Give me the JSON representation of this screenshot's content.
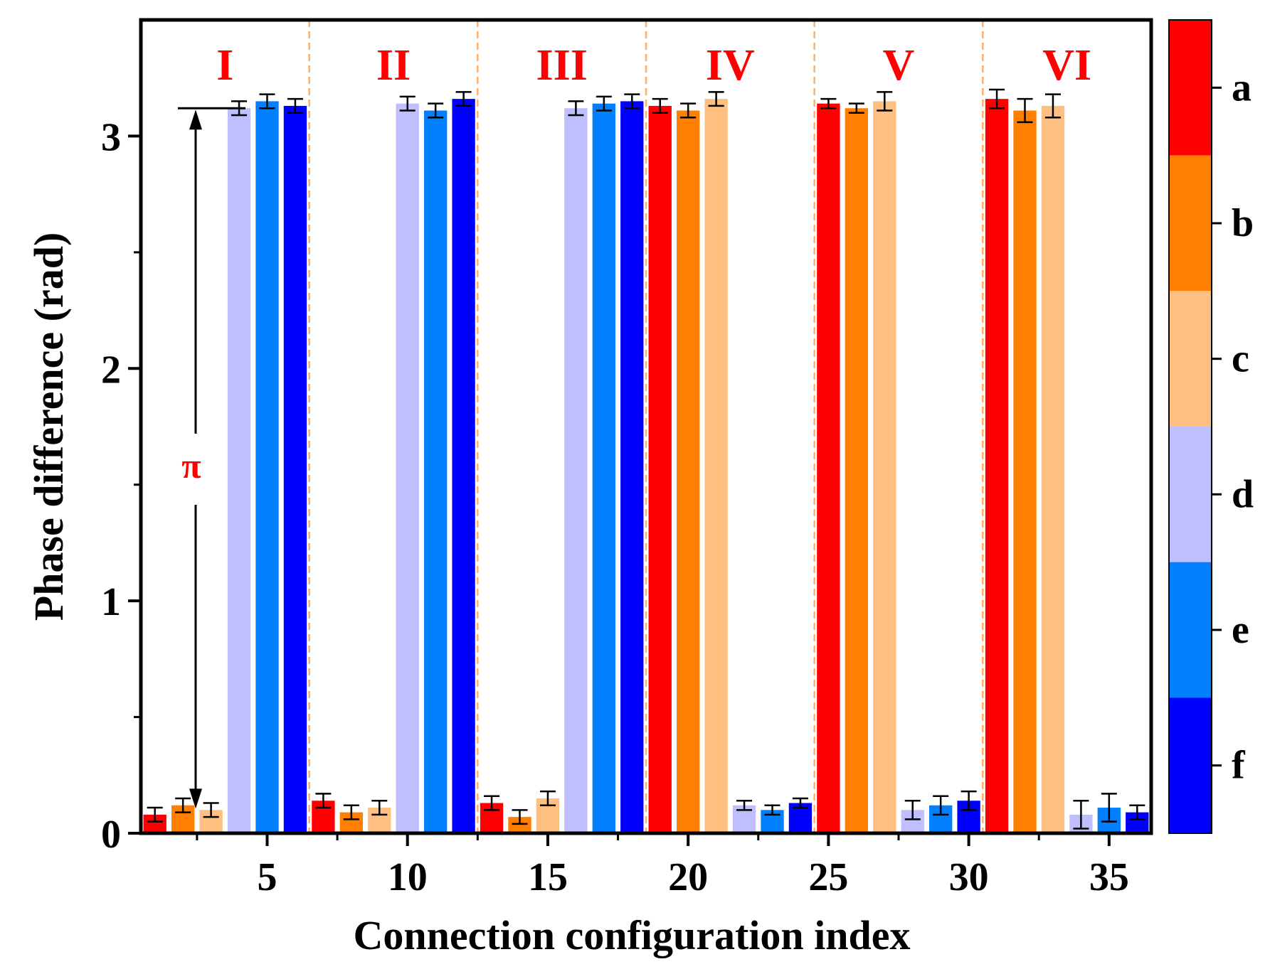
{
  "chart_data": {
    "type": "bar",
    "xlabel": "Connection configuration index",
    "ylabel": "Phase difference (rad)",
    "ylim": [
      0,
      3.5
    ],
    "xlim": [
      0.5,
      36.5
    ],
    "yticks": [
      0,
      1,
      2,
      3
    ],
    "xticks": [
      5,
      10,
      15,
      20,
      25,
      30,
      35
    ],
    "grid": false,
    "colorbar": [
      {
        "label": "a",
        "color": "#ff0000"
      },
      {
        "label": "b",
        "color": "#ff7f00"
      },
      {
        "label": "c",
        "color": "#ffbf80"
      },
      {
        "label": "d",
        "color": "#bfbfff"
      },
      {
        "label": "e",
        "color": "#0080ff"
      },
      {
        "label": "f",
        "color": "#0000ff"
      }
    ],
    "groups": [
      "I",
      "II",
      "III",
      "IV",
      "V",
      "VI"
    ],
    "group_color": "#ff0000",
    "separator_color": "#ffb060",
    "annotation": {
      "label": "π",
      "color": "#ff0000",
      "from_value": 0.1,
      "to_value": 3.12
    },
    "x": [
      1,
      2,
      3,
      4,
      5,
      6,
      7,
      8,
      9,
      10,
      11,
      12,
      13,
      14,
      15,
      16,
      17,
      18,
      19,
      20,
      21,
      22,
      23,
      24,
      25,
      26,
      27,
      28,
      29,
      30,
      31,
      32,
      33,
      34,
      35,
      36
    ],
    "values": [
      0.08,
      0.12,
      0.1,
      3.12,
      3.15,
      3.13,
      0.14,
      0.09,
      0.11,
      3.14,
      3.11,
      3.16,
      0.13,
      0.07,
      0.15,
      3.12,
      3.14,
      3.15,
      3.13,
      3.11,
      3.16,
      0.12,
      0.1,
      0.13,
      3.14,
      3.12,
      3.15,
      0.1,
      0.12,
      0.14,
      3.16,
      3.11,
      3.13,
      0.08,
      0.11,
      0.09
    ],
    "errors": [
      0.03,
      0.03,
      0.03,
      0.03,
      0.03,
      0.03,
      0.03,
      0.03,
      0.03,
      0.03,
      0.03,
      0.03,
      0.03,
      0.03,
      0.03,
      0.03,
      0.03,
      0.03,
      0.03,
      0.03,
      0.03,
      0.02,
      0.02,
      0.02,
      0.02,
      0.02,
      0.04,
      0.04,
      0.04,
      0.04,
      0.04,
      0.05,
      0.05,
      0.06,
      0.06,
      0.03
    ],
    "bar_colors": [
      "a",
      "b",
      "c",
      "d",
      "e",
      "f",
      "a",
      "b",
      "c",
      "d",
      "e",
      "f",
      "a",
      "b",
      "c",
      "d",
      "e",
      "f",
      "a",
      "b",
      "c",
      "d",
      "e",
      "f",
      "a",
      "b",
      "c",
      "d",
      "e",
      "f",
      "a",
      "b",
      "c",
      "d",
      "e",
      "f"
    ]
  }
}
